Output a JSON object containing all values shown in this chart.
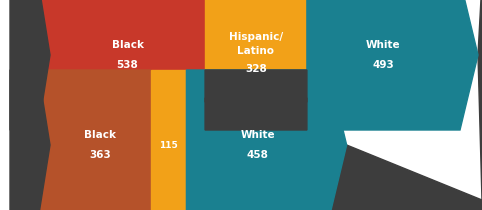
{
  "male": [
    538,
    328,
    493
  ],
  "female": [
    363,
    115,
    458
  ],
  "male_labels": [
    "Black\n538",
    "Hispanic/\nLatino\n328",
    "White\n493"
  ],
  "female_labels": [
    "Black\n363",
    "115",
    "White\n458"
  ],
  "colors_male": [
    "#C8382A",
    "#F2A118",
    "#1A8090"
  ],
  "colors_female": [
    "#B5522A",
    "#F2A118",
    "#1A8090"
  ],
  "dark_color": "#3D3D3D",
  "bg_color": "#FFFFFF",
  "figsize": [
    4.82,
    2.1
  ],
  "dpi": 100
}
